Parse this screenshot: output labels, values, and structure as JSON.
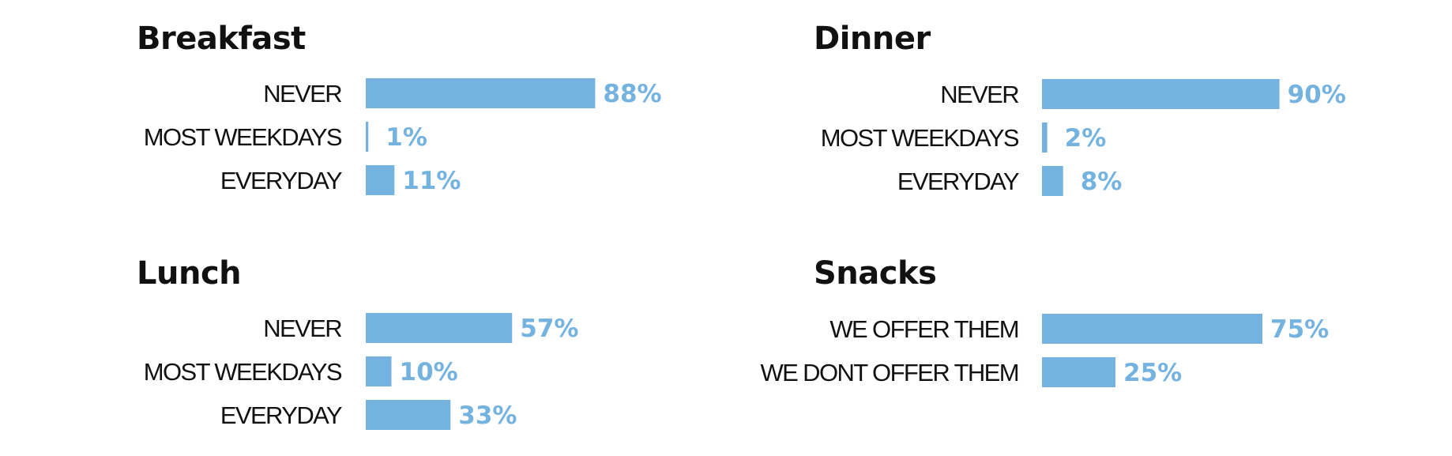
{
  "colors": {
    "bar": "#74b3e0",
    "label": "#74b3e0",
    "text": "#111111"
  },
  "chart_data": [
    {
      "type": "bar",
      "orientation": "horizontal",
      "title": "Breakfast",
      "categories": [
        "NEVER",
        "MOST WEEKDAYS",
        "EVERYDAY"
      ],
      "values": [
        88,
        1,
        11
      ],
      "labels": [
        "88%",
        "1%",
        "11%"
      ],
      "unit": "%",
      "xlim": [
        0,
        100
      ]
    },
    {
      "type": "bar",
      "orientation": "horizontal",
      "title": "Dinner",
      "categories": [
        "NEVER",
        "MOST WEEKDAYS",
        "EVERYDAY"
      ],
      "values": [
        90,
        2,
        8
      ],
      "labels": [
        "90%",
        "2%",
        "8%"
      ],
      "unit": "%",
      "xlim": [
        0,
        100
      ]
    },
    {
      "type": "bar",
      "orientation": "horizontal",
      "title": "Lunch",
      "categories": [
        "NEVER",
        "MOST WEEKDAYS",
        "EVERYDAY"
      ],
      "values": [
        57,
        10,
        33
      ],
      "labels": [
        "57%",
        "10%",
        "33%"
      ],
      "unit": "%",
      "xlim": [
        0,
        100
      ]
    },
    {
      "type": "bar",
      "orientation": "horizontal",
      "title": "Snacks",
      "categories": [
        "WE OFFER THEM",
        "WE DONT OFFER THEM"
      ],
      "values": [
        75,
        25
      ],
      "labels": [
        "75%",
        "25%"
      ],
      "unit": "%",
      "xlim": [
        0,
        100
      ]
    }
  ]
}
